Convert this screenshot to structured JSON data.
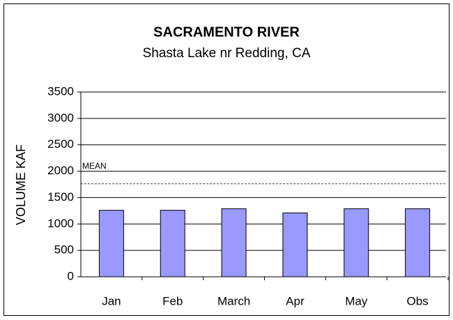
{
  "chart_data": {
    "type": "bar",
    "title": "SACRAMENTO RIVER",
    "subtitle": "Shasta Lake nr Redding, CA",
    "y_label": "VOLUME KAF",
    "categories": [
      "Jan",
      "Feb",
      "March",
      "Apr",
      "May",
      "Obs"
    ],
    "values": [
      1260,
      1260,
      1290,
      1210,
      1290,
      1290
    ],
    "color": "#9999ff",
    "mean": 1760,
    "mean_label": "MEAN",
    "ylim": [
      0,
      3500
    ],
    "yticks": [
      0,
      500,
      1000,
      1500,
      2000,
      2500,
      3000,
      3500
    ],
    "grid": true
  }
}
